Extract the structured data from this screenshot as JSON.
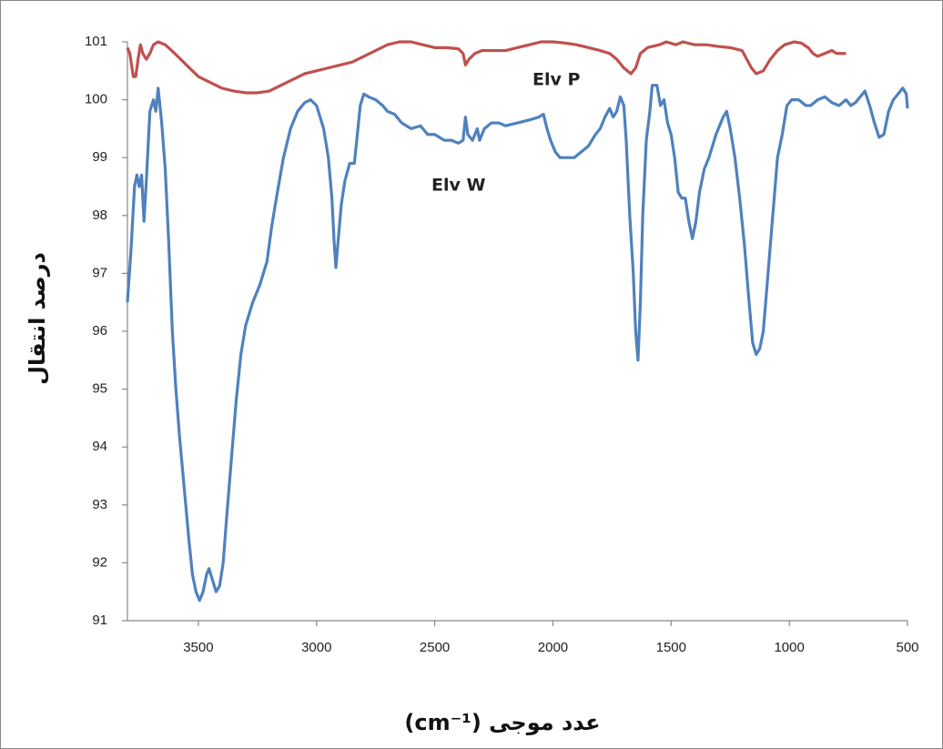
{
  "chart_data": {
    "type": "line",
    "x_label": "عدد موجی (cm⁻¹)",
    "y_label": "درصد انتقال",
    "annotations": [
      "Elv P",
      "Elv W"
    ],
    "xlim": [
      3800,
      500
    ],
    "xticks": [
      3500,
      3000,
      2500,
      2000,
      1500,
      1000,
      500
    ],
    "ylim": [
      91,
      101
    ],
    "yticks": [
      91,
      92,
      93,
      94,
      95,
      96,
      97,
      98,
      99,
      100,
      101
    ],
    "grid": false,
    "series": [
      {
        "color": "#c0504d",
        "x": [
          3800,
          3790,
          3775,
          3765,
          3755,
          3745,
          3735,
          3720,
          3705,
          3690,
          3670,
          3640,
          3600,
          3550,
          3500,
          3450,
          3400,
          3350,
          3300,
          3250,
          3200,
          3150,
          3100,
          3050,
          3000,
          2950,
          2900,
          2850,
          2800,
          2750,
          2700,
          2650,
          2600,
          2550,
          2500,
          2450,
          2400,
          2380,
          2370,
          2355,
          2330,
          2300,
          2250,
          2200,
          2150,
          2100,
          2050,
          2000,
          1950,
          1900,
          1850,
          1800,
          1760,
          1730,
          1700,
          1670,
          1650,
          1630,
          1600,
          1550,
          1520,
          1480,
          1450,
          1400,
          1350,
          1300,
          1250,
          1200,
          1180,
          1160,
          1140,
          1110,
          1080,
          1050,
          1020,
          980,
          950,
          920,
          900,
          880,
          850,
          820,
          800,
          760
        ],
        "values": [
          100.9,
          100.8,
          100.4,
          100.4,
          100.7,
          100.95,
          100.8,
          100.7,
          100.8,
          100.95,
          101,
          100.95,
          100.8,
          100.6,
          100.4,
          100.3,
          100.2,
          100.15,
          100.12,
          100.12,
          100.15,
          100.25,
          100.35,
          100.45,
          100.5,
          100.55,
          100.6,
          100.65,
          100.75,
          100.85,
          100.95,
          101,
          101,
          100.95,
          100.9,
          100.9,
          100.88,
          100.8,
          100.6,
          100.7,
          100.8,
          100.85,
          100.85,
          100.85,
          100.9,
          100.95,
          101,
          101,
          100.98,
          100.95,
          100.9,
          100.85,
          100.8,
          100.7,
          100.55,
          100.45,
          100.55,
          100.8,
          100.9,
          100.95,
          101,
          100.95,
          101,
          100.95,
          100.95,
          100.92,
          100.9,
          100.85,
          100.7,
          100.55,
          100.45,
          100.5,
          100.7,
          100.85,
          100.95,
          101,
          100.98,
          100.9,
          100.8,
          100.75,
          100.8,
          100.85,
          100.8,
          100.8
        ]
      },
      {
        "color": "#4f81bd",
        "x": [
          3800,
          3785,
          3770,
          3760,
          3750,
          3740,
          3730,
          3720,
          3705,
          3690,
          3680,
          3670,
          3655,
          3640,
          3625,
          3610,
          3595,
          3580,
          3560,
          3540,
          3525,
          3510,
          3495,
          3480,
          3465,
          3455,
          3440,
          3425,
          3410,
          3395,
          3380,
          3360,
          3340,
          3320,
          3300,
          3270,
          3240,
          3210,
          3190,
          3170,
          3140,
          3110,
          3080,
          3050,
          3025,
          3000,
          2970,
          2950,
          2935,
          2925,
          2918,
          2910,
          2895,
          2880,
          2860,
          2840,
          2830,
          2815,
          2800,
          2780,
          2750,
          2720,
          2700,
          2670,
          2640,
          2600,
          2560,
          2530,
          2500,
          2460,
          2430,
          2400,
          2380,
          2370,
          2360,
          2340,
          2320,
          2310,
          2290,
          2260,
          2230,
          2200,
          2150,
          2100,
          2060,
          2040,
          2025,
          2010,
          1990,
          1970,
          1940,
          1910,
          1880,
          1850,
          1820,
          1800,
          1780,
          1760,
          1745,
          1730,
          1715,
          1700,
          1690,
          1675,
          1660,
          1650,
          1640,
          1630,
          1620,
          1605,
          1590,
          1580,
          1560,
          1545,
          1530,
          1515,
          1500,
          1485,
          1470,
          1455,
          1440,
          1425,
          1410,
          1395,
          1380,
          1360,
          1340,
          1310,
          1280,
          1265,
          1250,
          1230,
          1210,
          1190,
          1170,
          1155,
          1140,
          1125,
          1110,
          1090,
          1070,
          1050,
          1030,
          1010,
          990,
          960,
          930,
          910,
          880,
          850,
          820,
          790,
          760,
          740,
          720,
          700,
          680,
          660,
          640,
          620,
          600,
          580,
          560,
          540,
          520,
          505,
          500
        ],
        "values": [
          96.5,
          97.4,
          98.5,
          98.7,
          98.5,
          98.7,
          97.9,
          98.6,
          99.8,
          100,
          99.8,
          100.2,
          99.6,
          98.8,
          97.5,
          96,
          95,
          94.2,
          93.3,
          92.4,
          91.8,
          91.5,
          91.35,
          91.5,
          91.8,
          91.9,
          91.7,
          91.5,
          91.6,
          92,
          92.8,
          93.8,
          94.8,
          95.6,
          96.1,
          96.5,
          96.8,
          97.2,
          97.8,
          98.3,
          99,
          99.5,
          99.8,
          99.95,
          100,
          99.9,
          99.5,
          99,
          98.3,
          97.5,
          97.1,
          97.5,
          98.2,
          98.6,
          98.9,
          98.9,
          99.3,
          99.9,
          100.1,
          100.05,
          100,
          99.9,
          99.8,
          99.75,
          99.6,
          99.5,
          99.55,
          99.4,
          99.4,
          99.3,
          99.3,
          99.25,
          99.3,
          99.7,
          99.4,
          99.3,
          99.5,
          99.3,
          99.5,
          99.6,
          99.6,
          99.55,
          99.6,
          99.65,
          99.7,
          99.75,
          99.5,
          99.3,
          99.1,
          99,
          99,
          99,
          99.1,
          99.2,
          99.4,
          99.5,
          99.7,
          99.85,
          99.7,
          99.8,
          100.05,
          99.9,
          99.3,
          98,
          97,
          96,
          95.5,
          96.5,
          98,
          99.3,
          99.8,
          100.25,
          100.25,
          99.9,
          100,
          99.6,
          99.4,
          99,
          98.4,
          98.3,
          98.3,
          97.9,
          97.6,
          97.9,
          98.4,
          98.8,
          99,
          99.4,
          99.7,
          99.8,
          99.5,
          99,
          98.3,
          97.5,
          96.5,
          95.8,
          95.6,
          95.7,
          96,
          97,
          98,
          99,
          99.4,
          99.9,
          100,
          100,
          99.9,
          99.9,
          100,
          100.05,
          99.95,
          99.9,
          100,
          99.9,
          99.95,
          100.05,
          100.15,
          99.9,
          99.6,
          99.35,
          99.4,
          99.8,
          100,
          100.1,
          100.2,
          100.1,
          99.85
        ]
      }
    ]
  }
}
